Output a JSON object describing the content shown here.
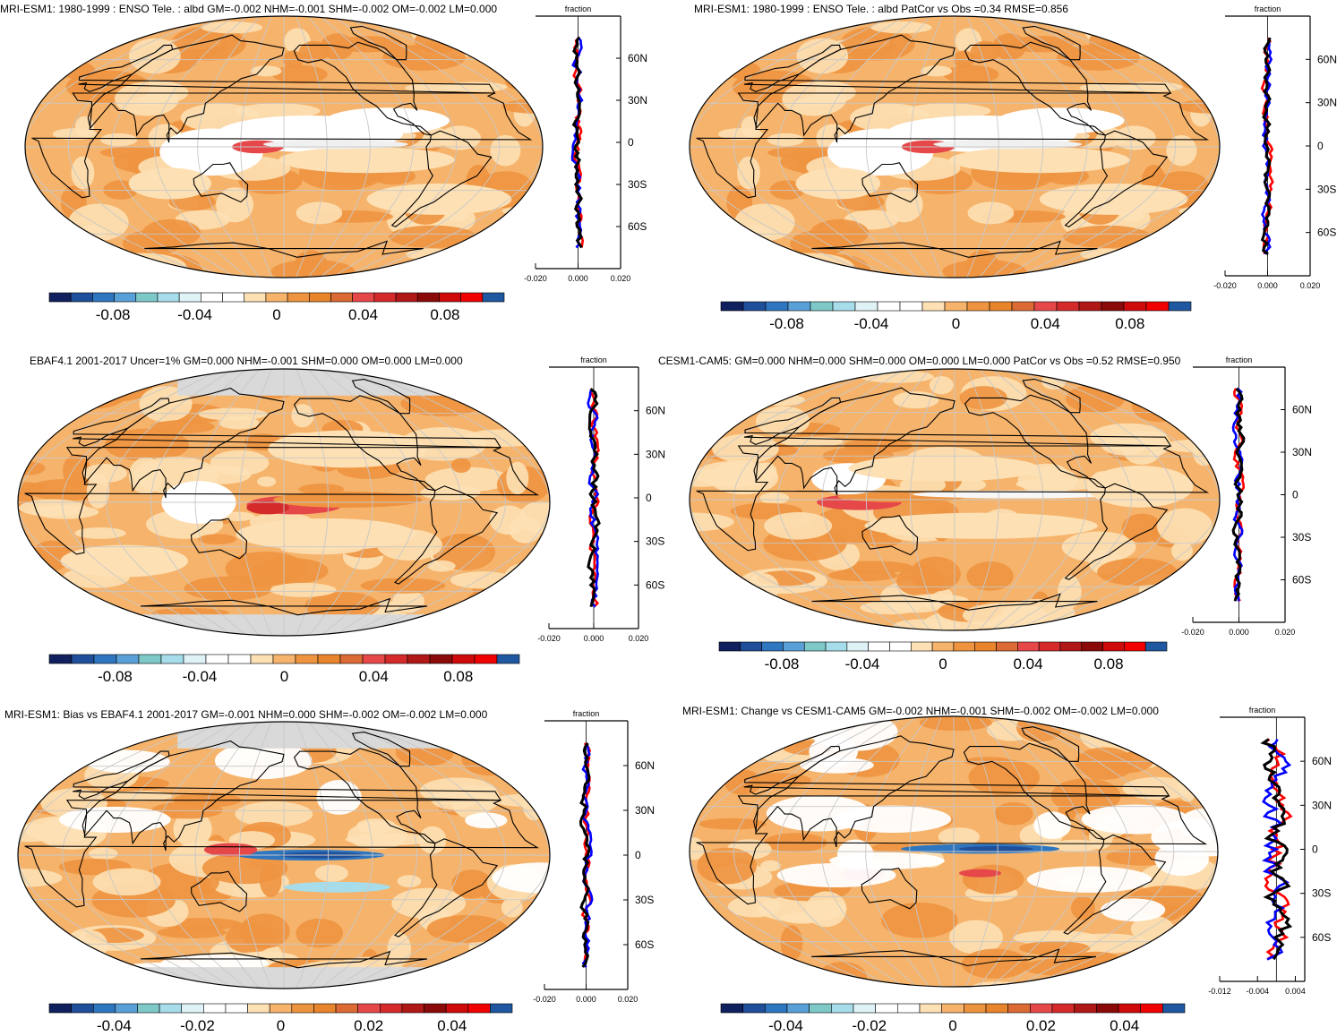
{
  "zonal_axis_title": "fraction",
  "lat_labels": [
    "60N",
    "30N",
    "0",
    "30S",
    "60S"
  ],
  "colors": {
    "land_outline": "#000000",
    "grid": "#c8c8c8",
    "missing": "#d9d9d9",
    "series": [
      "#ff0000",
      "#0000ff",
      "#000000"
    ]
  },
  "palette": [
    "#10205e",
    "#1f4f9a",
    "#2e76c0",
    "#5aa0d8",
    "#7ec8c8",
    "#a7dcea",
    "#dff3f7",
    "#ffffff",
    "#ffffff",
    "#fde0b4",
    "#f6b36b",
    "#ee9440",
    "#e8842c",
    "#dc6a34",
    "#e6484a",
    "#d42a2a",
    "#b01818",
    "#8a0a0a",
    "#cf0a0a",
    "#f00000",
    "#1f57a0"
  ],
  "panels": [
    {
      "title": "MRI-ESM1: 1980-1999 : ENSO Tele. : albd GM=-0.002 NHM=-0.001 SHM=-0.002 OM=-0.002 LM=0.000",
      "cbar_labels": [
        "-0.08",
        "-0.04",
        "0",
        "0.04",
        "0.08"
      ],
      "zonal_ticks": [
        "-0.020",
        "0.000",
        "0.020"
      ],
      "zonal_range": [
        -0.02,
        0.02
      ],
      "missing_poles": false,
      "pattern": "model"
    },
    {
      "title": "MRI-ESM1: 1980-1999 : ENSO Tele. : albd PatCor vs Obs =0.34 RMSE=0.856",
      "cbar_labels": [
        "-0.08",
        "-0.04",
        "0",
        "0.04",
        "0.08"
      ],
      "zonal_ticks": [
        "-0.020",
        "0.000",
        "0.020"
      ],
      "zonal_range": [
        -0.02,
        0.02
      ],
      "missing_poles": false,
      "pattern": "model"
    },
    {
      "title": "EBAF4.1 2001-2017 Uncer=1% GM=0.000 NHM=-0.001 SHM=0.000 OM=0.000 LM=0.000",
      "cbar_labels": [
        "-0.08",
        "-0.04",
        "0",
        "0.04",
        "0.08"
      ],
      "zonal_ticks": [
        "-0.020",
        "0.000",
        "0.020"
      ],
      "zonal_range": [
        -0.02,
        0.02
      ],
      "missing_poles": true,
      "pattern": "obs"
    },
    {
      "title": "CESM1-CAM5: GM=0.000 NHM=0.000 SHM=0.000 OM=0.000 LM=0.000 PatCor vs Obs =0.52 RMSE=0.950",
      "cbar_labels": [
        "-0.08",
        "-0.04",
        "0",
        "0.04",
        "0.08"
      ],
      "zonal_ticks": [
        "-0.020",
        "0.000",
        "0.020"
      ],
      "zonal_range": [
        -0.02,
        0.02
      ],
      "missing_poles": false,
      "pattern": "cesm"
    },
    {
      "title": "MRI-ESM1: Bias vs EBAF4.1 2001-2017 GM=-0.001 NHM=0.000 SHM=-0.002 OM=-0.002 LM=0.000",
      "cbar_labels": [
        "-0.04",
        "-0.02",
        "0",
        "0.02",
        "0.04"
      ],
      "zonal_ticks": [
        "-0.020",
        "0.000",
        "0.020"
      ],
      "zonal_range": [
        -0.02,
        0.02
      ],
      "missing_poles": true,
      "pattern": "bias"
    },
    {
      "title": "MRI-ESM1: Change vs CESM1-CAM5 GM=-0.002 NHM=-0.001 SHM=-0.002 OM=-0.002 LM=0.000",
      "cbar_labels": [
        "-0.04",
        "-0.02",
        "0",
        "0.02",
        "0.04"
      ],
      "zonal_ticks": [
        "-0.012",
        "-0.004",
        "0.004"
      ],
      "zonal_range": [
        -0.012,
        0.006
      ],
      "missing_poles": false,
      "pattern": "change"
    }
  ]
}
